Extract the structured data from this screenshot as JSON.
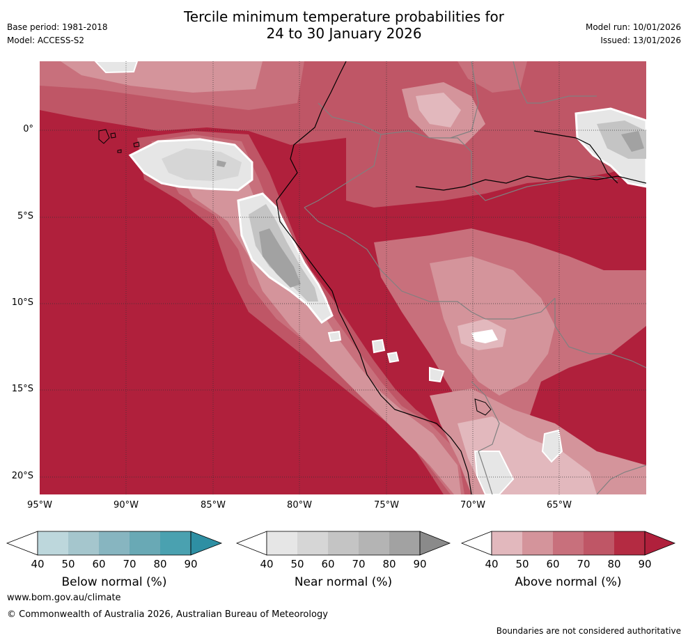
{
  "title_line1": "Tercile minimum temperature probabilities for",
  "title_line2": "24 to 30 January 2026",
  "base_period": "Base period: 1981-2018",
  "model": "Model: ACCESS-S2",
  "model_run": "Model run: 10/01/2026",
  "issued": "Issued: 13/01/2026",
  "lat_labels": [
    "0°",
    "5°S",
    "10°S",
    "15°S",
    "20°S"
  ],
  "lon_labels": [
    "95°W",
    "90°W",
    "85°W",
    "80°W",
    "75°W",
    "70°W",
    "65°W"
  ],
  "colorbars": {
    "below": {
      "title": "Below normal (%)",
      "ticks": [
        "40",
        "50",
        "60",
        "70",
        "80",
        "90"
      ],
      "colors": [
        "#bdd7dc",
        "#a5c6cd",
        "#87b5c0",
        "#69a9b5",
        "#4aa1b0",
        "#2e8fa3"
      ]
    },
    "near": {
      "title": "Near normal (%)",
      "ticks": [
        "40",
        "50",
        "60",
        "70",
        "80",
        "90"
      ],
      "colors": [
        "#e6e6e6",
        "#d6d6d6",
        "#c4c4c4",
        "#b4b4b4",
        "#a2a2a2",
        "#8a8a8a"
      ]
    },
    "above": {
      "title": "Above normal (%)",
      "ticks": [
        "40",
        "50",
        "60",
        "70",
        "80",
        "90"
      ],
      "colors": [
        "#e2b8bd",
        "#d4949b",
        "#c8707c",
        "#bf5666",
        "#b42b42",
        "#b0203c"
      ]
    }
  },
  "website": "www.bom.gov.au/climate",
  "copyright": "© Commonwealth of Australia 2026, Australian Bureau of Meteorology",
  "disclaimer": "Boundaries are not considered authoritative"
}
